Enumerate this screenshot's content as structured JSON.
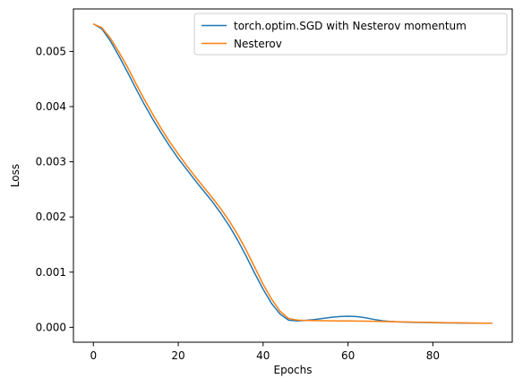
{
  "chart_data": {
    "type": "line",
    "title": "",
    "xlabel": "Epochs",
    "ylabel": "Loss",
    "xlim": [
      -4.7,
      98.7
    ],
    "ylim": [
      -0.00027,
      0.00577
    ],
    "x_ticks": [
      0,
      20,
      40,
      60,
      80
    ],
    "x_tick_labels": [
      "0",
      "20",
      "40",
      "60",
      "80"
    ],
    "y_ticks": [
      0,
      0.001,
      0.002,
      0.003,
      0.004,
      0.005
    ],
    "y_tick_labels": [
      "0.000",
      "0.001",
      "0.002",
      "0.003",
      "0.004",
      "0.005"
    ],
    "grid": false,
    "legend_position": "upper right",
    "x": [
      0,
      2,
      4,
      6,
      8,
      10,
      12,
      14,
      16,
      18,
      20,
      22,
      24,
      26,
      28,
      30,
      32,
      34,
      36,
      38,
      40,
      42,
      44,
      46,
      48,
      50,
      52,
      54,
      56,
      58,
      60,
      62,
      64,
      66,
      68,
      70,
      72,
      74,
      76,
      78,
      80,
      82,
      84,
      86,
      88,
      90,
      92,
      94
    ],
    "series": [
      {
        "name": "torch.optim.SGD with Nesterov momentum",
        "color": "#1f77b4",
        "values": [
          0.0055,
          0.00541,
          0.00519,
          0.00492,
          0.00463,
          0.00433,
          0.00404,
          0.00377,
          0.00352,
          0.00328,
          0.00306,
          0.00286,
          0.00266,
          0.00247,
          0.00228,
          0.00207,
          0.00184,
          0.00158,
          0.00129,
          0.00098,
          0.00069,
          0.00043,
          0.00024,
          0.00013,
          0.000115,
          0.000125,
          0.00014,
          0.00016,
          0.00018,
          0.000195,
          0.0002,
          0.000195,
          0.000175,
          0.000145,
          0.00012,
          0.000105,
          9.8e-05,
          9.4e-05,
          9e-05,
          8.7e-05,
          8.5e-05,
          8.2e-05,
          8e-05,
          7.8e-05,
          7.7e-05,
          7.6e-05,
          7.5e-05,
          7.4e-05
        ]
      },
      {
        "name": "Nesterov",
        "color": "#ff7f0e",
        "values": [
          0.0055,
          0.00543,
          0.00524,
          0.00499,
          0.00472,
          0.00442,
          0.00413,
          0.00386,
          0.0036,
          0.00336,
          0.00314,
          0.00293,
          0.00273,
          0.00254,
          0.00235,
          0.00215,
          0.00193,
          0.00168,
          0.0014,
          0.00109,
          0.00078,
          0.00051,
          0.00029,
          0.00016,
          0.00013,
          0.000125,
          0.000122,
          0.00012,
          0.000118,
          0.000116,
          0.000115,
          0.000113,
          0.000111,
          0.000109,
          0.000106,
          0.000103,
          0.0001,
          9.7e-05,
          9.4e-05,
          9.1e-05,
          8.8e-05,
          8.6e-05,
          8.4e-05,
          8.2e-05,
          8e-05,
          7.8e-05,
          7.6e-05,
          7.5e-05
        ]
      }
    ]
  }
}
